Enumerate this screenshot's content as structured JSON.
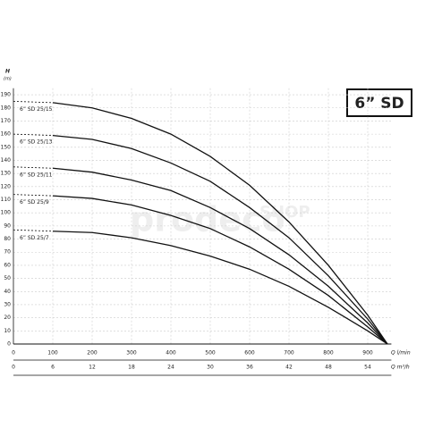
{
  "chart_data": {
    "type": "line",
    "title": "6” SD",
    "ylabel": "H",
    "ylabel_unit": "(m)",
    "xlabel": "Q l/min",
    "x2label": "Q m³/h",
    "watermark": [
      "prodeco",
      "SHOP"
    ],
    "x": [
      0,
      100,
      200,
      300,
      400,
      500,
      600,
      700,
      800,
      900,
      950
    ],
    "xlim": [
      0,
      960
    ],
    "xticks": [
      0,
      100,
      200,
      300,
      400,
      500,
      600,
      700,
      800,
      900
    ],
    "x2ticks": [
      0,
      6,
      12,
      18,
      24,
      30,
      36,
      42,
      48,
      54
    ],
    "ylim": [
      0,
      195
    ],
    "yticks": [
      0,
      10,
      20,
      30,
      40,
      50,
      60,
      70,
      80,
      90,
      100,
      110,
      120,
      130,
      140,
      150,
      160,
      170,
      180,
      190
    ],
    "grid": true,
    "series": [
      {
        "name": "6” SD 25/15",
        "color": "#111",
        "values": [
          185,
          184,
          180,
          172,
          160,
          143,
          121,
          93,
          60,
          22,
          0
        ]
      },
      {
        "name": "6” SD 25/13",
        "color": "#111",
        "values": [
          160,
          159,
          156,
          149,
          138,
          124,
          104,
          81,
          52,
          19,
          0
        ]
      },
      {
        "name": "6” SD 25/11",
        "color": "#111",
        "values": [
          135,
          134,
          131,
          125,
          117,
          104,
          88,
          68,
          44,
          16,
          0
        ]
      },
      {
        "name": "6” SD 25/9",
        "color": "#111",
        "values": [
          114,
          113,
          111,
          106,
          98,
          88,
          74,
          57,
          37,
          13,
          0
        ]
      },
      {
        "name": "6” SD 25/7",
        "color": "#111",
        "values": [
          87,
          86,
          85,
          81,
          75,
          67,
          57,
          44,
          28,
          10,
          0
        ]
      }
    ]
  }
}
